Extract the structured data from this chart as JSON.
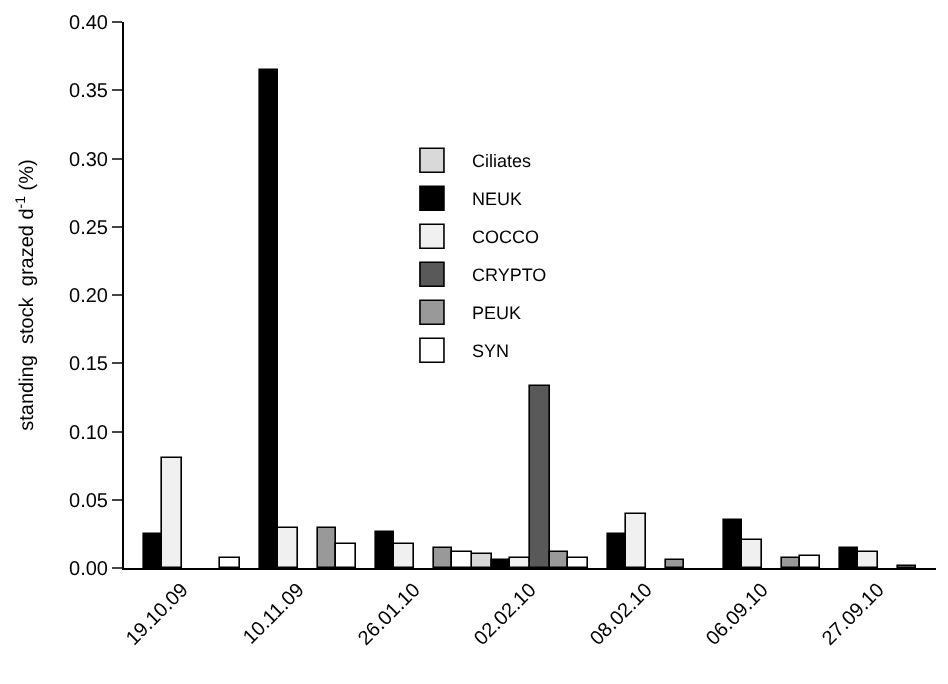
{
  "chart_data": {
    "type": "bar",
    "ylabel": "standing  stock  grazed d$^{-1}$ (%)",
    "categories": [
      "19.10.09",
      "10.11.09",
      "26.01.10",
      "02.02.10",
      "08.02.10",
      "06.09.10",
      "27.09.10"
    ],
    "series": [
      {
        "name": "Ciliates",
        "color": "#d9d9d9",
        "values": [
          null,
          null,
          null,
          0.01,
          null,
          null,
          null
        ]
      },
      {
        "name": "NEUK",
        "color": "#000000",
        "values": [
          0.025,
          0.365,
          0.027,
          0.006,
          0.025,
          0.035,
          0.014
        ]
      },
      {
        "name": "COCCO",
        "color": "#f0f0f0",
        "values": [
          0.08,
          0.03,
          0.018,
          0.008,
          0.04,
          0.02,
          0.012
        ]
      },
      {
        "name": "CRYPTO",
        "color": "#595959",
        "values": [
          null,
          null,
          null,
          0.133,
          null,
          null,
          null
        ]
      },
      {
        "name": "PEUK",
        "color": "#999999",
        "values": [
          null,
          0.03,
          0.015,
          0.011,
          0.006,
          0.007,
          0.002
        ]
      },
      {
        "name": "SYN",
        "color": "#ffffff",
        "values": [
          0.007,
          0.018,
          0.011,
          0.007,
          null,
          0.009,
          null
        ]
      }
    ],
    "ylim": [
      0,
      0.4
    ],
    "yticks": [
      {
        "value": 0,
        "label": "0.00"
      },
      {
        "value": 0.05,
        "label": "0.05"
      },
      {
        "value": 0.1,
        "label": "0.10"
      },
      {
        "value": 0.15,
        "label": "0.15"
      },
      {
        "value": 0.2,
        "label": "0.20"
      },
      {
        "value": 0.25,
        "label": "0.25"
      },
      {
        "value": 0.3,
        "label": "0.30"
      },
      {
        "value": 0.35,
        "label": "0.35"
      },
      {
        "value": 0.4,
        "label": "0.40"
      }
    ],
    "grid": false,
    "legend": "top"
  }
}
